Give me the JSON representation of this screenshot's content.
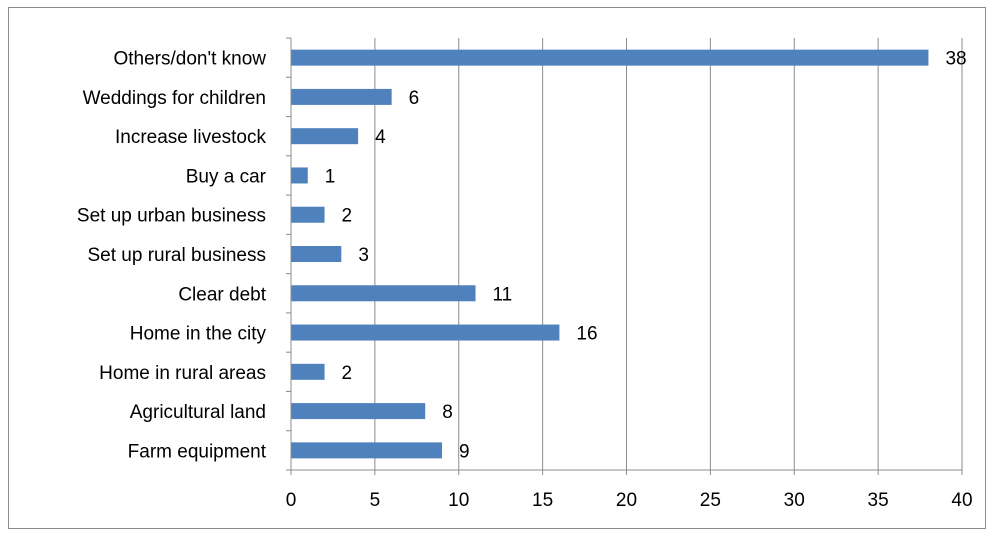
{
  "chart_data": {
    "type": "bar",
    "orientation": "horizontal",
    "categories": [
      "Farm equipment",
      "Agricultural land",
      "Home in rural areas",
      "Home in the city",
      "Clear debt",
      "Set up rural business",
      "Set up urban business",
      "Buy a car",
      "Increase livestock",
      "Weddings for children",
      "Others/don't know"
    ],
    "values": [
      9,
      8,
      2,
      16,
      11,
      3,
      2,
      1,
      4,
      6,
      38
    ],
    "xlim": [
      0,
      40
    ],
    "xticks": [
      0,
      5,
      10,
      15,
      20,
      25,
      30,
      35,
      40
    ],
    "grid": "vertical",
    "bar_color": "#4f81bd",
    "title": "",
    "xlabel": "",
    "ylabel": ""
  }
}
